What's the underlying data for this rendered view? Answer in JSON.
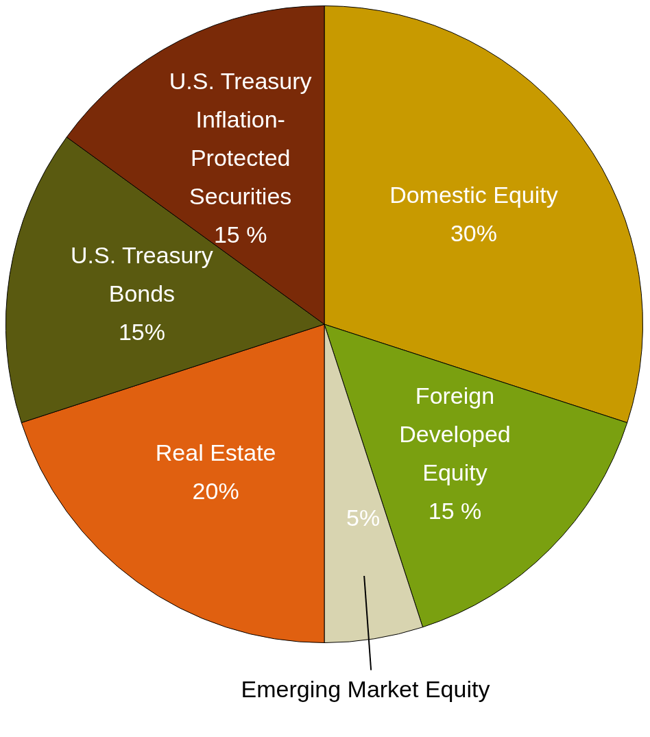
{
  "chart_data": {
    "type": "pie",
    "categories": [
      "Domestic Equity",
      "Foreign Developed Equity",
      "Emerging Market Equity",
      "Real Estate",
      "U.S. Treasury Bonds",
      "U.S. Treasury Inflation-Protected Securities"
    ],
    "values": [
      30,
      15,
      5,
      20,
      15,
      15
    ],
    "value_labels": [
      "30%",
      "15 %",
      "5%",
      "20%",
      "15%",
      "15 %"
    ],
    "colors": [
      "#c89a00",
      "#7aa010",
      "#d8d4b0",
      "#e06010",
      "#5a5a10",
      "#7a2a08"
    ],
    "legend": false
  }
}
